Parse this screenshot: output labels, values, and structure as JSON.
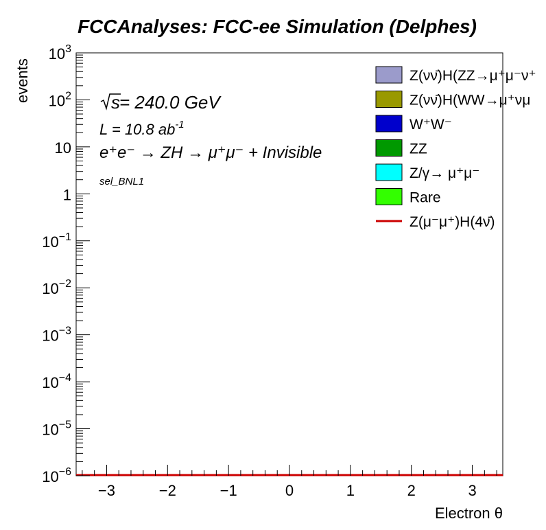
{
  "chart_data": {
    "type": "histogram",
    "title": "FCCAnalyses: FCC-ee Simulation (Delphes)",
    "xlabel": "Electron θ",
    "ylabel": "events",
    "xlim": [
      -3.5,
      3.5
    ],
    "ylim": [
      1e-06,
      1000
    ],
    "yscale": "log",
    "x_ticks": [
      -3,
      -2,
      -1,
      0,
      1,
      2,
      3
    ],
    "x_tick_labels": [
      "−3",
      "−2",
      "−1",
      "0",
      "1",
      "2",
      "3"
    ],
    "y_ticks": [
      {
        "value": 1e-06,
        "base": "10",
        "exp": "−6"
      },
      {
        "value": 1e-05,
        "base": "10",
        "exp": "−5"
      },
      {
        "value": 0.0001,
        "base": "10",
        "exp": "−4"
      },
      {
        "value": 0.001,
        "base": "10",
        "exp": "−3"
      },
      {
        "value": 0.01,
        "base": "10",
        "exp": "−2"
      },
      {
        "value": 0.1,
        "base": "10",
        "exp": "−1"
      },
      {
        "value": 1,
        "base": "1",
        "exp": ""
      },
      {
        "value": 10,
        "base": "10",
        "exp": ""
      },
      {
        "value": 100,
        "base": "10",
        "exp": "2"
      },
      {
        "value": 1000,
        "base": "10",
        "exp": "3"
      }
    ],
    "annotations": {
      "sqrt_s": "s",
      "energy": " = 240.0 GeV",
      "lumi_prefix": "L = 10.8 ab",
      "lumi_exp": "-1",
      "process": "e⁺e⁻ → ZH → μ⁺μ⁻ + Invisible",
      "selection": "sel_BNL1"
    },
    "legend": {
      "placement": "top-right",
      "entries": [
        {
          "label": "Z(νν̄)H(ZZ→μ⁺μ⁻ν⁺",
          "color": "#9b9bcb",
          "style": "fill"
        },
        {
          "label": "Z(νν̄)H(WW→μ⁺νμ",
          "color": "#999900",
          "style": "fill"
        },
        {
          "label": "W⁺W⁻",
          "color": "#0000cc",
          "style": "fill"
        },
        {
          "label": "ZZ",
          "color": "#009900",
          "style": "fill"
        },
        {
          "label": "Z/γ→ μ⁺μ⁻",
          "color": "#00ffff",
          "style": "fill"
        },
        {
          "label": "Rare",
          "color": "#33ff00",
          "style": "fill"
        },
        {
          "label": "Z(μ⁻μ⁺)H(4ν̄)",
          "color": "#cc0000",
          "style": "line"
        }
      ]
    },
    "series": [
      {
        "name": "Z(μ⁻μ⁺)H(4ν̄)",
        "color": "#cc0000",
        "x": [
          -3.5,
          3.5
        ],
        "values": [
          1e-06,
          1e-06
        ]
      }
    ]
  }
}
